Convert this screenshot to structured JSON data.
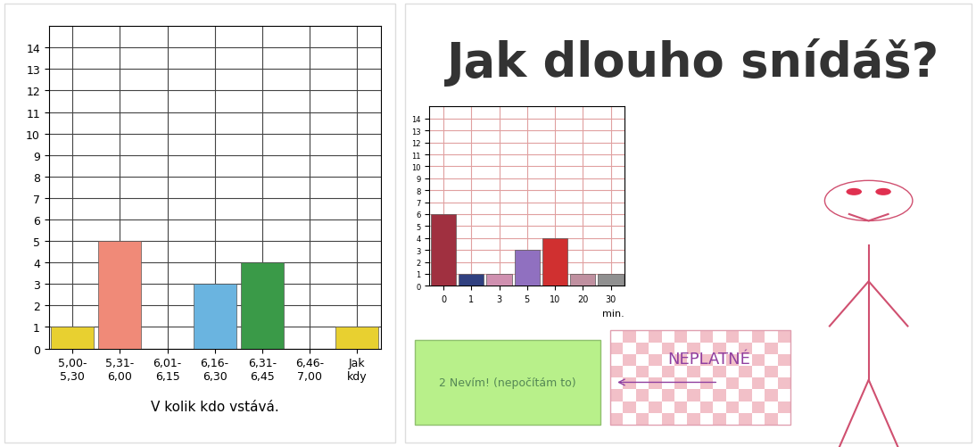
{
  "chart_data": [
    {
      "type": "bar",
      "x_label": "V kolik kdo vstává.",
      "categories": [
        "5,00-\n5,30",
        "5,31-\n6,00",
        "6,01-\n6,15",
        "6,16-\n6,30",
        "6,31-\n6,45",
        "6,46-\n7,00",
        "Jak\nkdy"
      ],
      "values": [
        1,
        5,
        0,
        3,
        4,
        0,
        1
      ],
      "colors": [
        "#e8d030",
        "#f08a78",
        "#ffffff",
        "#6ab4e0",
        "#3a9a48",
        "#ffffff",
        "#e8d030"
      ],
      "ylim": [
        0,
        15
      ],
      "yticks": [
        0,
        1,
        2,
        3,
        4,
        5,
        6,
        7,
        8,
        9,
        10,
        11,
        12,
        13,
        14
      ],
      "grid": true
    },
    {
      "type": "bar",
      "title": "Jak dlouho snídáš?",
      "x_label": "min.",
      "categories": [
        "0",
        "1",
        "3",
        "5",
        "10",
        "20",
        "30"
      ],
      "values": [
        6,
        1,
        1,
        3,
        4,
        1,
        1
      ],
      "colors": [
        "#a03040",
        "#304080",
        "#d090b0",
        "#9070c0",
        "#d03030",
        "#c090a0",
        "#909090"
      ],
      "ylim": [
        0,
        15
      ],
      "yticks": [
        0,
        1,
        2,
        3,
        4,
        5,
        6,
        7,
        8,
        9,
        10,
        11,
        12,
        13,
        14
      ],
      "grid": true,
      "annotations": [
        "2 Nevím! (nepočítám to)",
        "NEPLATNÉ"
      ]
    }
  ]
}
